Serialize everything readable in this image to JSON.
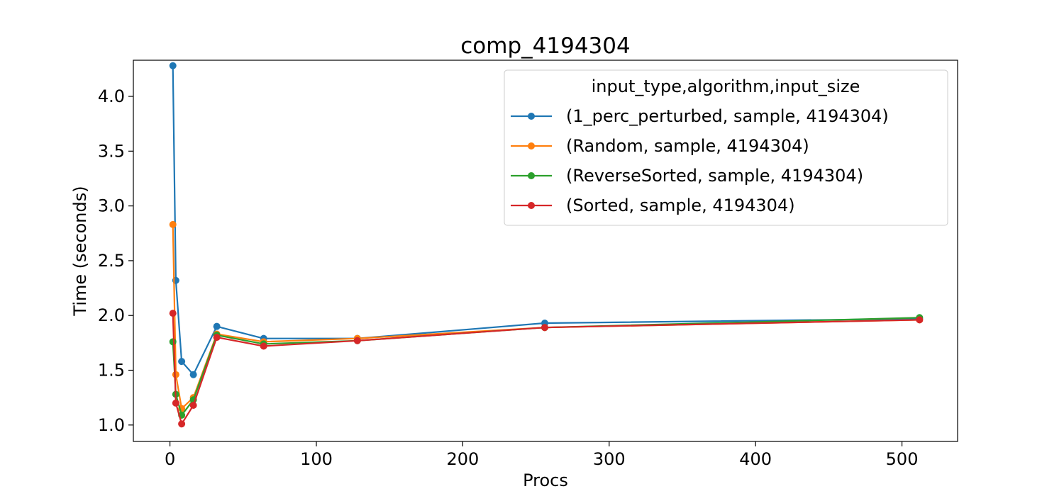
{
  "chart_data": {
    "type": "line",
    "title": "comp_4194304",
    "xlabel": "Procs",
    "ylabel": "Time (seconds)",
    "xlim": [
      -25,
      538
    ],
    "ylim": [
      0.85,
      4.33
    ],
    "xticks": [
      0,
      100,
      200,
      300,
      400,
      500
    ],
    "yticks": [
      1.0,
      1.5,
      2.0,
      2.5,
      3.0,
      3.5,
      4.0
    ],
    "grid": false,
    "legend": {
      "title": "input_type,algorithm,input_size",
      "placement": "top-right"
    },
    "x": [
      2,
      4,
      8,
      16,
      32,
      64,
      128,
      256,
      512
    ],
    "series": [
      {
        "name": "(1_perc_perturbed, sample, 4194304)",
        "color": "#1f77b4",
        "values": [
          4.28,
          2.32,
          1.58,
          1.46,
          1.9,
          1.79,
          1.79,
          1.93,
          1.97
        ]
      },
      {
        "name": "(Random, sample, 4194304)",
        "color": "#ff7f0e",
        "values": [
          2.83,
          1.46,
          1.15,
          1.25,
          1.83,
          1.76,
          1.79,
          1.89,
          1.96
        ]
      },
      {
        "name": "(ReverseSorted, sample, 4194304)",
        "color": "#2ca02c",
        "values": [
          1.76,
          1.28,
          1.09,
          1.23,
          1.82,
          1.74,
          1.77,
          1.89,
          1.98
        ]
      },
      {
        "name": "(Sorted, sample, 4194304)",
        "color": "#d62728",
        "values": [
          2.02,
          1.2,
          1.01,
          1.18,
          1.8,
          1.72,
          1.77,
          1.89,
          1.96
        ]
      }
    ]
  }
}
